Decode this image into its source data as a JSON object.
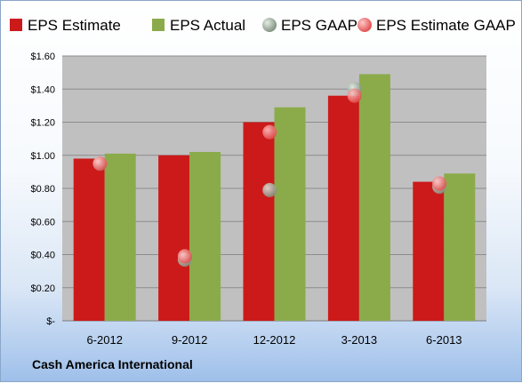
{
  "company": "Cash America International",
  "chart_data": {
    "type": "bar",
    "categories": [
      "6-2012",
      "9-2012",
      "12-2012",
      "3-2013",
      "6-2013"
    ],
    "series": [
      {
        "name": "EPS Estimate",
        "kind": "bar",
        "color": "#cc1a1a",
        "values": [
          0.98,
          1.0,
          1.2,
          1.36,
          0.84
        ]
      },
      {
        "name": "EPS Actual",
        "kind": "bar",
        "color": "#8bab4a",
        "values": [
          1.01,
          1.02,
          1.29,
          1.49,
          0.89
        ]
      },
      {
        "name": "EPS GAAP",
        "kind": "marker",
        "color": "#8a9a8a",
        "values": [
          0.95,
          0.37,
          0.79,
          1.4,
          0.81
        ]
      },
      {
        "name": "EPS Estimate GAAP",
        "kind": "marker",
        "color": "#e86a6a",
        "values": [
          0.95,
          0.39,
          1.14,
          1.36,
          0.83
        ]
      }
    ],
    "yticks": [
      "$-",
      "$0.20",
      "$0.40",
      "$0.60",
      "$0.80",
      "$1.00",
      "$1.20",
      "$1.40",
      "$1.60"
    ],
    "ylim": [
      0,
      1.6
    ],
    "grid": true,
    "legend_position": "top",
    "plot_background": "#c0c0c0"
  }
}
